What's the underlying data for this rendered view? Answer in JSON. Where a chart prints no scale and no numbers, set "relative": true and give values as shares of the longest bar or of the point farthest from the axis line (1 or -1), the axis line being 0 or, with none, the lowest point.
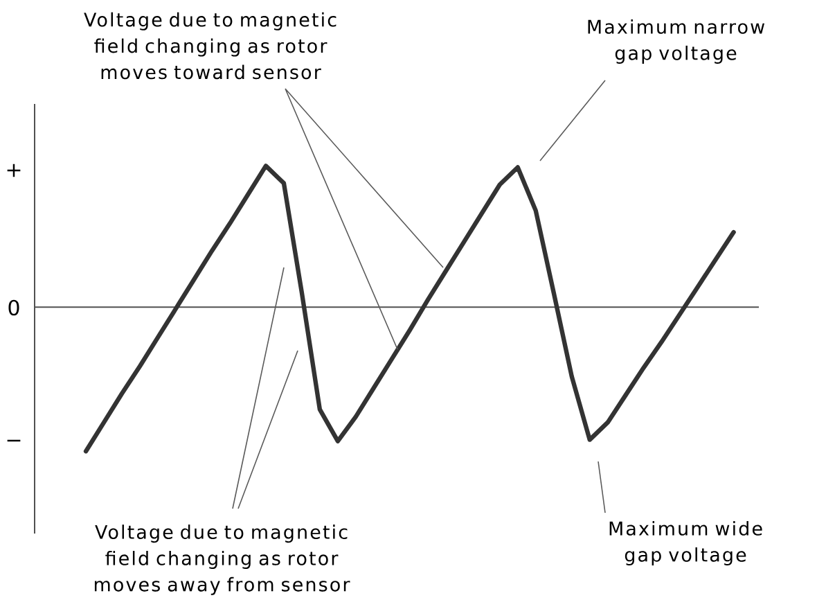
{
  "chart_data": {
    "type": "line",
    "categories": [
      null,
      null,
      null,
      null,
      null,
      null,
      null,
      null,
      null,
      null,
      null,
      null,
      null,
      null,
      null,
      null,
      null,
      null,
      null,
      null,
      null,
      null,
      null,
      null,
      null,
      null,
      null,
      null,
      null,
      null,
      null,
      null,
      null,
      null,
      null,
      null,
      null
    ],
    "values": [
      -1,
      -0.8,
      -0.6,
      -0.41,
      -0.21,
      -0.01,
      0.19,
      0.39,
      0.58,
      0.78,
      0.98,
      0.86,
      0.1,
      -0.71,
      -0.93,
      -0.76,
      -0.56,
      -0.36,
      -0.16,
      0.05,
      0.25,
      0.45,
      0.65,
      0.85,
      0.97,
      0.67,
      0.1,
      -0.48,
      -0.92,
      -0.8,
      -0.61,
      -0.42,
      -0.24,
      -0.05,
      0.14,
      0.33,
      0.52
    ],
    "color": "#333333",
    "relative": true,
    "annotations": [
      "Voltage due to magnetic field changing as rotor moves toward sensor",
      "Voltage due to magnetic field changing as rotor moves away from sensor",
      "Maximum narrow gap voltage",
      "Maximum wide gap voltage",
      "+",
      "0",
      "−"
    ]
  }
}
